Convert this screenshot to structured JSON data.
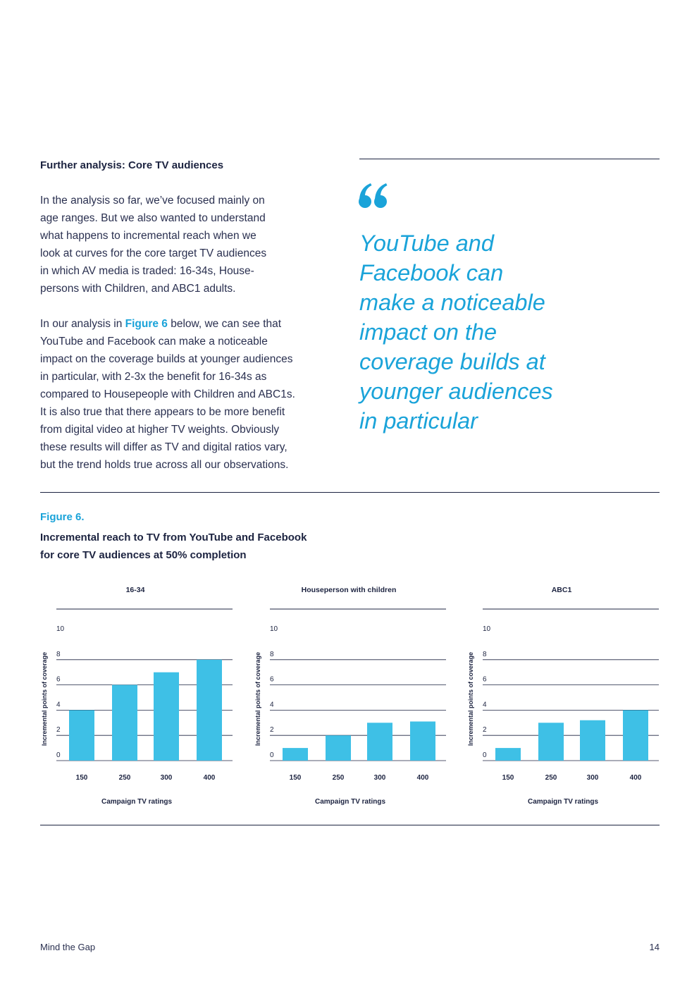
{
  "section_heading": "Further analysis: Core TV audiences",
  "paragraph1": [
    "In the analysis so far, we’ve focused mainly on",
    "age ranges. But we also wanted to understand",
    "what happens to incremental reach when we",
    "look at curves for the core target TV audiences",
    "in which AV media is traded: 16-34s, House-",
    "persons with Children, and ABC1 adults."
  ],
  "paragraph2": {
    "lead": "In our analysis in ",
    "link": "Figure 6",
    "after": " below, we can see that",
    "lines": [
      "YouTube and Facebook can make a noticeable",
      "impact on the coverage builds at younger audiences",
      "in particular, with 2-3x the benefit for 16-34s as",
      "compared to Housepeople with Children and ABC1s.",
      "It is also true that there appears to be more benefit",
      "from digital video at higher TV weights. Obviously",
      "these results will differ as TV and digital ratios vary,",
      "but the trend holds true across all our observations."
    ]
  },
  "pull_quote": {
    "icon": "quotation-mark-icon",
    "lines": [
      "YouTube and",
      "Facebook can",
      "make a noticeable",
      "impact on the",
      "coverage builds at",
      "younger audiences",
      "in particular"
    ]
  },
  "figure": {
    "label": "Figure 6.",
    "title_lines": [
      "Incremental reach to TV from YouTube and Facebook",
      "for core TV audiences at 50% completion"
    ]
  },
  "colors": {
    "accent": "#1aa3d9",
    "bar": "#3ec0e6",
    "ink": "#1c2340"
  },
  "chart_data": [
    {
      "type": "bar",
      "title": "16-34",
      "categories": [
        "150",
        "250",
        "300",
        "400"
      ],
      "values": [
        4,
        6,
        7,
        8
      ],
      "xlabel": "Campaign TV ratings",
      "ylabel": "Incremental points of coverage",
      "ylim": [
        0,
        10
      ],
      "yticks": [
        0,
        2,
        4,
        6,
        8,
        10
      ],
      "grid": true
    },
    {
      "type": "bar",
      "title": "Houseperson with children",
      "categories": [
        "150",
        "250",
        "300",
        "400"
      ],
      "values": [
        1,
        2,
        3,
        3.1
      ],
      "xlabel": "Campaign TV ratings",
      "ylabel": "Incremental points of coverage",
      "ylim": [
        0,
        10
      ],
      "yticks": [
        0,
        2,
        4,
        6,
        8,
        10
      ],
      "grid": true
    },
    {
      "type": "bar",
      "title": "ABC1",
      "categories": [
        "150",
        "250",
        "300",
        "400"
      ],
      "values": [
        1,
        3,
        3.2,
        4
      ],
      "xlabel": "Campaign TV ratings",
      "ylabel": "Incremental points of coverage",
      "ylim": [
        0,
        10
      ],
      "yticks": [
        0,
        2,
        4,
        6,
        8,
        10
      ],
      "grid": true
    }
  ],
  "footer": {
    "title": "Mind the Gap",
    "page_number": "14"
  }
}
